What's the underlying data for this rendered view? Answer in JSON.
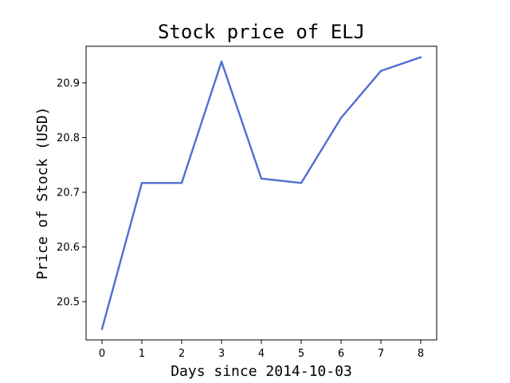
{
  "chart_data": {
    "type": "line",
    "title": "Stock price of ELJ",
    "xlabel": "Days since 2014-10-03",
    "ylabel": "Price of Stock (USD)",
    "x": [
      0,
      1,
      2,
      3,
      4,
      5,
      6,
      7,
      8
    ],
    "series": [
      {
        "values": [
          20.45,
          20.717,
          20.717,
          20.939,
          20.725,
          20.717,
          20.836,
          20.922,
          20.947
        ],
        "color": "#4e6fcf"
      }
    ],
    "xlim": [
      -0.4,
      8.4
    ],
    "ylim": [
      20.43,
      20.967
    ],
    "xticks": [
      0,
      1,
      2,
      3,
      4,
      5,
      6,
      7,
      8
    ],
    "yticks": [
      20.5,
      20.6,
      20.7,
      20.8,
      20.9
    ],
    "ytick_labels": [
      "20.5",
      "20.6",
      "20.7",
      "20.8",
      "20.9"
    ],
    "grid": false,
    "legend": false
  }
}
